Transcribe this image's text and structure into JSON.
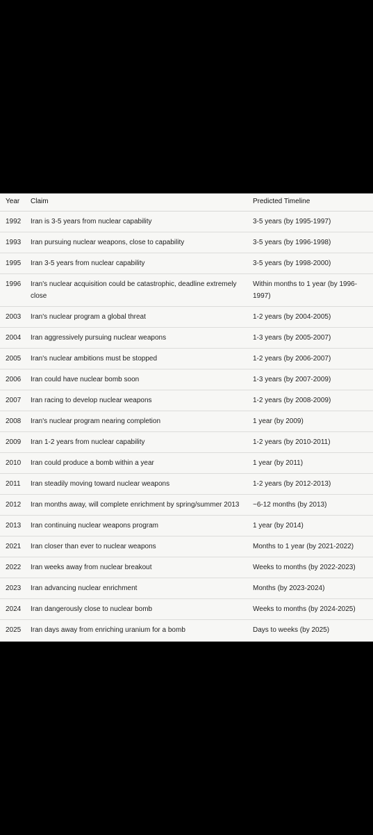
{
  "table": {
    "columns": [
      "Year",
      "Claim",
      "Predicted Timeline"
    ],
    "rows": [
      [
        "1992",
        "Iran is 3-5 years from nuclear capability",
        "3-5 years (by 1995-1997)"
      ],
      [
        "1993",
        "Iran pursuing nuclear weapons, close to capability",
        "3-5 years (by 1996-1998)"
      ],
      [
        "1995",
        "Iran 3-5 years from nuclear capability",
        "3-5 years (by 1998-2000)"
      ],
      [
        "1996",
        "Iran's nuclear acquisition could be catastrophic, deadline extremely close",
        "Within months to 1 year (by 1996-1997)"
      ],
      [
        "2003",
        "Iran's nuclear program a global threat",
        "1-2 years (by 2004-2005)"
      ],
      [
        "2004",
        "Iran aggressively pursuing nuclear weapons",
        "1-3 years (by 2005-2007)"
      ],
      [
        "2005",
        "Iran's nuclear ambitions must be stopped",
        "1-2 years (by 2006-2007)"
      ],
      [
        "2006",
        "Iran could have nuclear bomb soon",
        "1-3 years (by 2007-2009)"
      ],
      [
        "2007",
        "Iran racing to develop nuclear weapons",
        "1-2 years (by 2008-2009)"
      ],
      [
        "2008",
        "Iran's nuclear program nearing completion",
        "1 year (by 2009)"
      ],
      [
        "2009",
        "Iran 1-2 years from nuclear capability",
        "1-2 years (by 2010-2011)"
      ],
      [
        "2010",
        "Iran could produce a bomb within a year",
        "1 year (by 2011)"
      ],
      [
        "2011",
        "Iran steadily moving toward nuclear weapons",
        "1-2 years (by 2012-2013)"
      ],
      [
        "2012",
        "Iran months away, will complete enrichment by spring/summer 2013",
        "~6-12 months (by 2013)"
      ],
      [
        "2013",
        "Iran continuing nuclear weapons program",
        "1 year (by 2014)"
      ],
      [
        "2021",
        "Iran closer than ever to nuclear weapons",
        "Months to 1 year (by 2021-2022)"
      ],
      [
        "2022",
        "Iran weeks away from nuclear breakout",
        "Weeks to months (by 2022-2023)"
      ],
      [
        "2023",
        "Iran advancing nuclear enrichment",
        "Months (by 2023-2024)"
      ],
      [
        "2024",
        "Iran dangerously close to nuclear bomb",
        "Weeks to months (by 2024-2025)"
      ],
      [
        "2025",
        "Iran days away from enriching uranium for a bomb",
        "Days to weeks (by 2025)"
      ]
    ]
  }
}
